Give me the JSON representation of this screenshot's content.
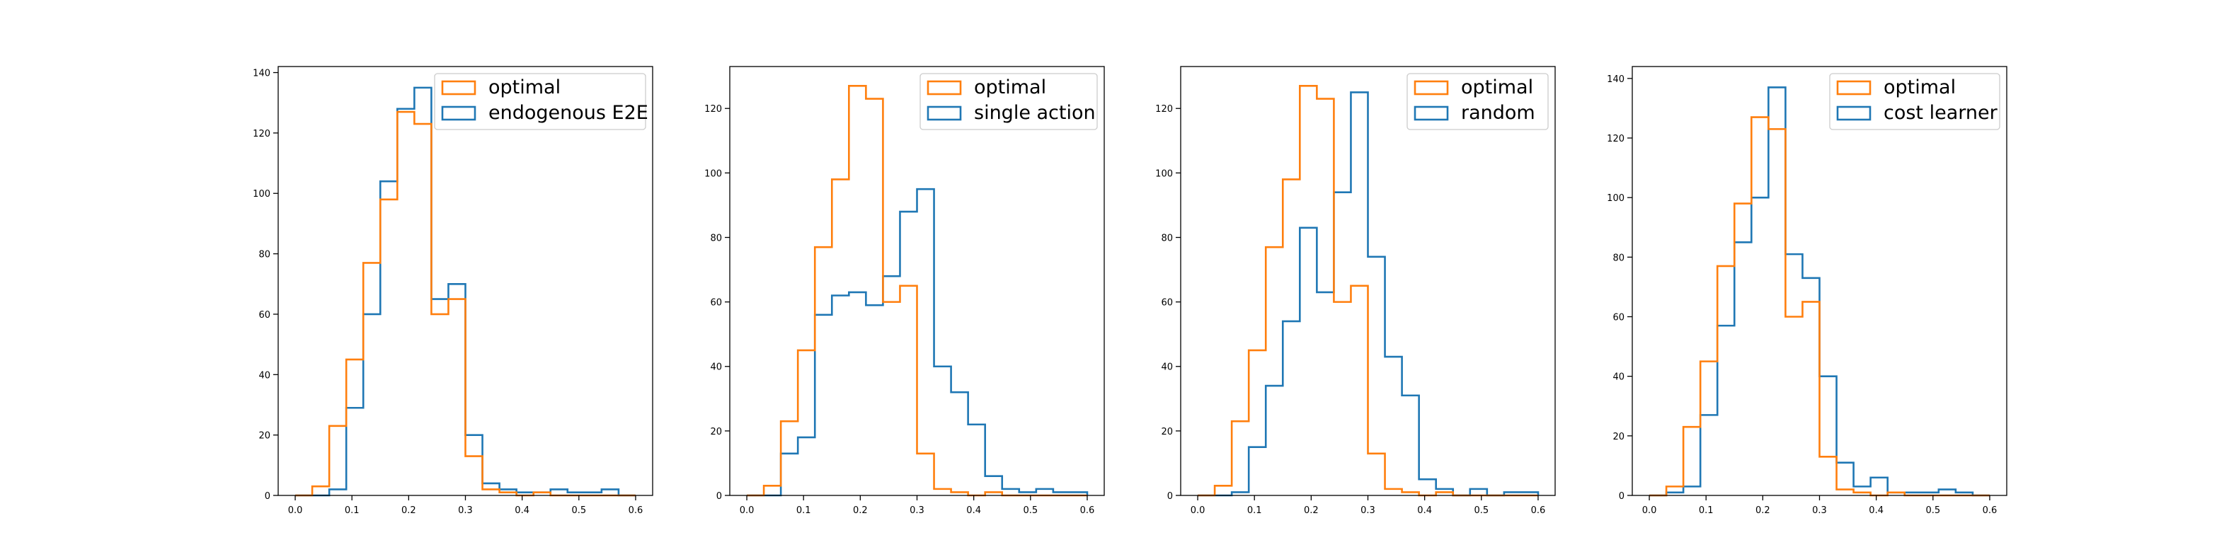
{
  "chart_data": [
    {
      "type": "histogram",
      "legend_position": "top-right",
      "grid": false,
      "xlim": [
        -0.03,
        0.63
      ],
      "ylim": [
        0,
        142
      ],
      "x_ticks": [
        "0.0",
        "0.1",
        "0.2",
        "0.3",
        "0.4",
        "0.5",
        "0.6"
      ],
      "y_ticks": [
        "0",
        "20",
        "40",
        "60",
        "80",
        "100",
        "120",
        "140"
      ],
      "bin_edges": [
        0.0,
        0.03,
        0.06,
        0.09,
        0.12,
        0.15,
        0.18,
        0.21,
        0.24,
        0.27,
        0.3,
        0.33,
        0.36,
        0.39,
        0.42,
        0.45,
        0.48,
        0.51,
        0.54,
        0.57,
        0.6
      ],
      "series": [
        {
          "name": "optimal",
          "color": "#ff7f0e",
          "values": [
            0,
            3,
            23,
            45,
            77,
            98,
            127,
            123,
            60,
            65,
            13,
            2,
            1,
            0,
            1,
            0,
            0,
            0,
            0,
            0
          ]
        },
        {
          "name": "endogenous E2E",
          "color": "#1f77b4",
          "values": [
            0,
            0,
            2,
            29,
            60,
            104,
            128,
            135,
            65,
            70,
            20,
            4,
            2,
            1,
            1,
            2,
            1,
            1,
            2,
            0
          ]
        }
      ]
    },
    {
      "type": "histogram",
      "legend_position": "top-right",
      "grid": false,
      "xlim": [
        -0.03,
        0.63
      ],
      "ylim": [
        0,
        133
      ],
      "x_ticks": [
        "0.0",
        "0.1",
        "0.2",
        "0.3",
        "0.4",
        "0.5",
        "0.6"
      ],
      "y_ticks": [
        "0",
        "20",
        "40",
        "60",
        "80",
        "100",
        "120"
      ],
      "bin_edges": [
        0.0,
        0.03,
        0.06,
        0.09,
        0.12,
        0.15,
        0.18,
        0.21,
        0.24,
        0.27,
        0.3,
        0.33,
        0.36,
        0.39,
        0.42,
        0.45,
        0.48,
        0.51,
        0.54,
        0.57,
        0.6
      ],
      "series": [
        {
          "name": "optimal",
          "color": "#ff7f0e",
          "values": [
            0,
            3,
            23,
            45,
            77,
            98,
            127,
            123,
            60,
            65,
            13,
            2,
            1,
            0,
            1,
            0,
            0,
            0,
            0,
            0
          ]
        },
        {
          "name": "single action",
          "color": "#1f77b4",
          "values": [
            0,
            0,
            13,
            18,
            56,
            62,
            63,
            59,
            68,
            88,
            95,
            40,
            32,
            22,
            6,
            2,
            1,
            2,
            1,
            1
          ]
        }
      ]
    },
    {
      "type": "histogram",
      "legend_position": "top-right",
      "grid": false,
      "xlim": [
        -0.03,
        0.63
      ],
      "ylim": [
        0,
        133
      ],
      "x_ticks": [
        "0.0",
        "0.1",
        "0.2",
        "0.3",
        "0.4",
        "0.5",
        "0.6"
      ],
      "y_ticks": [
        "0",
        "20",
        "40",
        "60",
        "80",
        "100",
        "120"
      ],
      "bin_edges": [
        0.0,
        0.03,
        0.06,
        0.09,
        0.12,
        0.15,
        0.18,
        0.21,
        0.24,
        0.27,
        0.3,
        0.33,
        0.36,
        0.39,
        0.42,
        0.45,
        0.48,
        0.51,
        0.54,
        0.57,
        0.6
      ],
      "series": [
        {
          "name": "optimal",
          "color": "#ff7f0e",
          "values": [
            0,
            3,
            23,
            45,
            77,
            98,
            127,
            123,
            60,
            65,
            13,
            2,
            1,
            0,
            1,
            0,
            0,
            0,
            0,
            0
          ]
        },
        {
          "name": "random",
          "color": "#1f77b4",
          "values": [
            0,
            0,
            1,
            15,
            34,
            54,
            83,
            63,
            94,
            125,
            74,
            43,
            31,
            5,
            2,
            0,
            2,
            0,
            1,
            1
          ]
        }
      ]
    },
    {
      "type": "histogram",
      "legend_position": "top-right",
      "grid": false,
      "xlim": [
        -0.03,
        0.63
      ],
      "ylim": [
        0,
        144
      ],
      "x_ticks": [
        "0.0",
        "0.1",
        "0.2",
        "0.3",
        "0.4",
        "0.5",
        "0.6"
      ],
      "y_ticks": [
        "0",
        "20",
        "40",
        "60",
        "80",
        "100",
        "120",
        "140"
      ],
      "bin_edges": [
        0.0,
        0.03,
        0.06,
        0.09,
        0.12,
        0.15,
        0.18,
        0.21,
        0.24,
        0.27,
        0.3,
        0.33,
        0.36,
        0.39,
        0.42,
        0.45,
        0.48,
        0.51,
        0.54,
        0.57,
        0.6
      ],
      "series": [
        {
          "name": "optimal",
          "color": "#ff7f0e",
          "values": [
            0,
            3,
            23,
            45,
            77,
            98,
            127,
            123,
            60,
            65,
            13,
            2,
            1,
            0,
            1,
            0,
            0,
            0,
            0,
            0
          ]
        },
        {
          "name": "cost learner",
          "color": "#1f77b4",
          "values": [
            0,
            1,
            3,
            27,
            57,
            85,
            100,
            137,
            81,
            73,
            40,
            11,
            3,
            6,
            1,
            1,
            1,
            2,
            1,
            0
          ]
        }
      ]
    }
  ]
}
